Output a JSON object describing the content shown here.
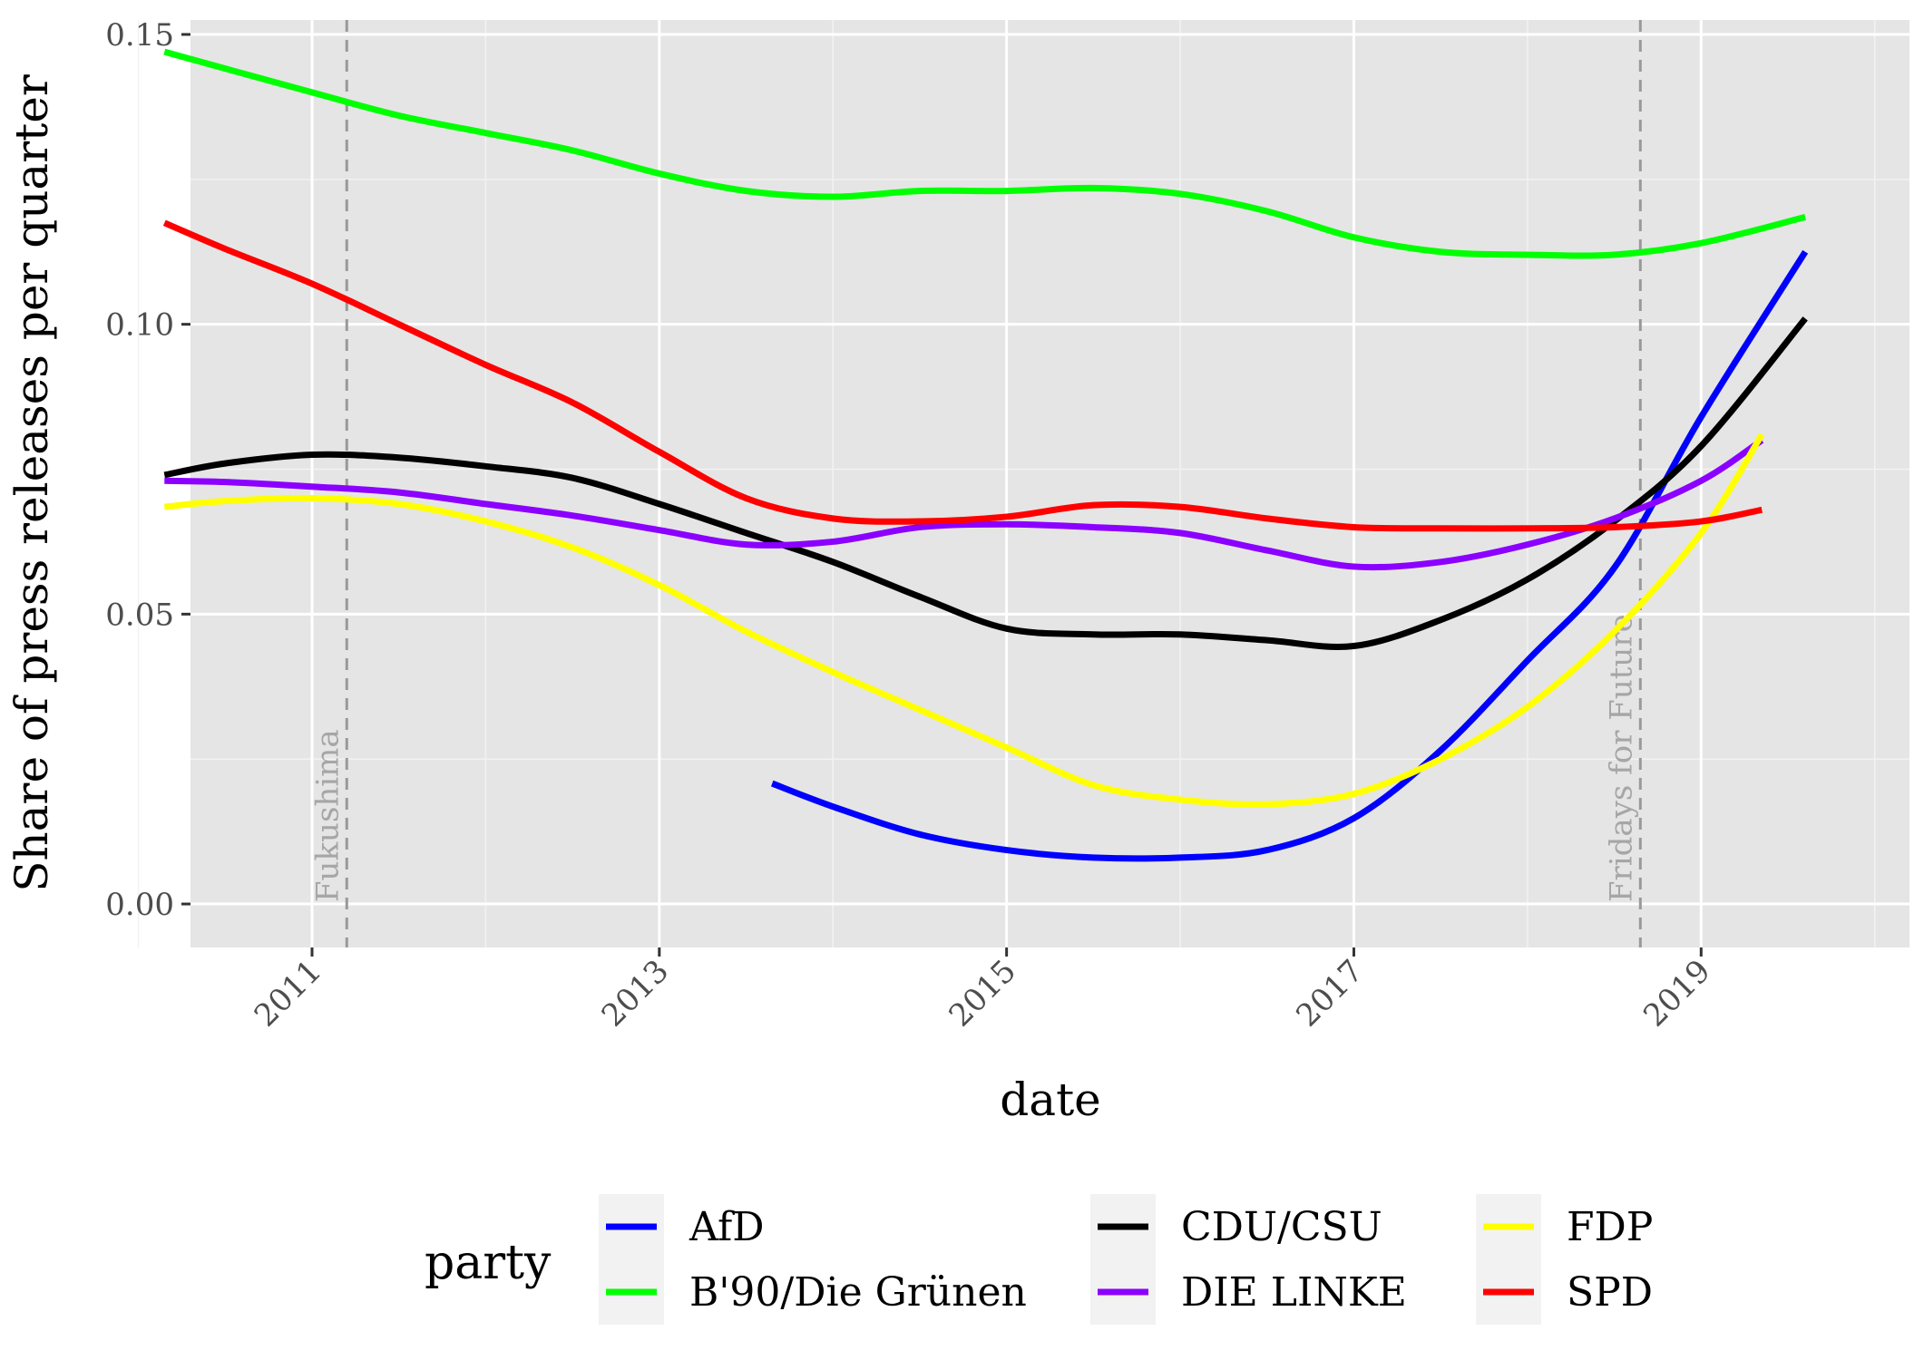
{
  "chart_data": {
    "type": "line",
    "xlabel": "date",
    "ylabel": "Share of press releases per quarter",
    "xlim": [
      2010.3,
      2020.2
    ],
    "ylim": [
      -0.0075,
      0.1525
    ],
    "x_ticks": [
      2011,
      2013,
      2015,
      2017,
      2019
    ],
    "x_tick_labels": [
      "2011",
      "2013",
      "2015",
      "2017",
      "2019"
    ],
    "x_minor_ticks": [
      2010,
      2012,
      2014,
      2016,
      2018,
      2020
    ],
    "y_ticks": [
      0.0,
      0.05,
      0.1,
      0.15
    ],
    "y_tick_labels": [
      "0.00",
      "0.05",
      "0.10",
      "0.15"
    ],
    "y_minor_ticks": [
      0.025,
      0.075,
      0.125
    ],
    "grid": true,
    "legend": {
      "title": "party",
      "position": "bottom"
    },
    "vlines": [
      {
        "x": 2011.2,
        "label": "Fukushima"
      },
      {
        "x": 2018.65,
        "label": "Fridays for Future"
      }
    ],
    "series": [
      {
        "name": "AfD",
        "color": "#0000ff",
        "points": [
          [
            2013.65,
            0.0208
          ],
          [
            2014.0,
            0.0168
          ],
          [
            2014.5,
            0.012
          ],
          [
            2015.0,
            0.0093
          ],
          [
            2015.5,
            0.008
          ],
          [
            2016.0,
            0.008
          ],
          [
            2016.5,
            0.0093
          ],
          [
            2017.0,
            0.0148
          ],
          [
            2017.5,
            0.0265
          ],
          [
            2018.0,
            0.042
          ],
          [
            2018.5,
            0.058
          ],
          [
            2019.0,
            0.084
          ],
          [
            2019.6,
            0.1125
          ]
        ]
      },
      {
        "name": "B'90/Die Grünen",
        "color": "#00ff00",
        "points": [
          [
            2010.15,
            0.147
          ],
          [
            2011.0,
            0.14
          ],
          [
            2011.5,
            0.136
          ],
          [
            2012.0,
            0.133
          ],
          [
            2012.5,
            0.13
          ],
          [
            2013.0,
            0.126
          ],
          [
            2013.5,
            0.123
          ],
          [
            2014.0,
            0.122
          ],
          [
            2014.5,
            0.123
          ],
          [
            2015.0,
            0.123
          ],
          [
            2015.5,
            0.1235
          ],
          [
            2016.0,
            0.1225
          ],
          [
            2016.5,
            0.1195
          ],
          [
            2017.0,
            0.115
          ],
          [
            2017.5,
            0.1125
          ],
          [
            2018.0,
            0.112
          ],
          [
            2018.5,
            0.112
          ],
          [
            2019.0,
            0.114
          ],
          [
            2019.6,
            0.1185
          ]
        ]
      },
      {
        "name": "CDU/CSU",
        "color": "#000000",
        "points": [
          [
            2010.15,
            0.074
          ],
          [
            2010.5,
            0.076
          ],
          [
            2011.0,
            0.0775
          ],
          [
            2011.5,
            0.077
          ],
          [
            2012.0,
            0.0755
          ],
          [
            2012.5,
            0.0735
          ],
          [
            2013.0,
            0.069
          ],
          [
            2013.5,
            0.064
          ],
          [
            2014.0,
            0.059
          ],
          [
            2014.5,
            0.053
          ],
          [
            2015.0,
            0.0475
          ],
          [
            2015.5,
            0.0465
          ],
          [
            2016.0,
            0.0465
          ],
          [
            2016.5,
            0.0455
          ],
          [
            2017.0,
            0.0445
          ],
          [
            2017.5,
            0.049
          ],
          [
            2018.0,
            0.056
          ],
          [
            2018.5,
            0.066
          ],
          [
            2019.0,
            0.079
          ],
          [
            2019.6,
            0.101
          ]
        ]
      },
      {
        "name": "DIE LINKE",
        "color": "#8b00ff",
        "points": [
          [
            2010.15,
            0.073
          ],
          [
            2010.5,
            0.0728
          ],
          [
            2011.0,
            0.072
          ],
          [
            2011.5,
            0.071
          ],
          [
            2012.0,
            0.069
          ],
          [
            2012.5,
            0.067
          ],
          [
            2013.0,
            0.0645
          ],
          [
            2013.5,
            0.062
          ],
          [
            2014.0,
            0.0625
          ],
          [
            2014.5,
            0.065
          ],
          [
            2015.0,
            0.0655
          ],
          [
            2015.5,
            0.065
          ],
          [
            2016.0,
            0.064
          ],
          [
            2016.5,
            0.061
          ],
          [
            2017.0,
            0.0582
          ],
          [
            2017.5,
            0.059
          ],
          [
            2018.0,
            0.062
          ],
          [
            2018.5,
            0.0665
          ],
          [
            2019.0,
            0.073
          ],
          [
            2019.35,
            0.08
          ]
        ]
      },
      {
        "name": "FDP",
        "color": "#ffff00",
        "points": [
          [
            2010.15,
            0.0685
          ],
          [
            2010.5,
            0.0695
          ],
          [
            2011.0,
            0.07
          ],
          [
            2011.5,
            0.069
          ],
          [
            2012.0,
            0.066
          ],
          [
            2012.5,
            0.0615
          ],
          [
            2013.0,
            0.055
          ],
          [
            2013.5,
            0.047
          ],
          [
            2014.0,
            0.04
          ],
          [
            2014.5,
            0.0335
          ],
          [
            2015.0,
            0.027
          ],
          [
            2015.5,
            0.0205
          ],
          [
            2016.0,
            0.018
          ],
          [
            2016.5,
            0.0172
          ],
          [
            2017.0,
            0.019
          ],
          [
            2017.5,
            0.025
          ],
          [
            2018.0,
            0.034
          ],
          [
            2018.5,
            0.047
          ],
          [
            2019.0,
            0.064
          ],
          [
            2019.35,
            0.081
          ]
        ]
      },
      {
        "name": "SPD",
        "color": "#ff0000",
        "points": [
          [
            2010.15,
            0.1175
          ],
          [
            2010.5,
            0.113
          ],
          [
            2011.0,
            0.107
          ],
          [
            2011.5,
            0.1
          ],
          [
            2012.0,
            0.093
          ],
          [
            2012.5,
            0.0865
          ],
          [
            2013.0,
            0.078
          ],
          [
            2013.5,
            0.07
          ],
          [
            2014.0,
            0.0665
          ],
          [
            2014.5,
            0.066
          ],
          [
            2015.0,
            0.0668
          ],
          [
            2015.5,
            0.0688
          ],
          [
            2016.0,
            0.0685
          ],
          [
            2016.5,
            0.0665
          ],
          [
            2017.0,
            0.065
          ],
          [
            2017.5,
            0.0648
          ],
          [
            2018.0,
            0.0648
          ],
          [
            2018.5,
            0.065
          ],
          [
            2019.0,
            0.066
          ],
          [
            2019.35,
            0.068
          ]
        ]
      }
    ]
  }
}
